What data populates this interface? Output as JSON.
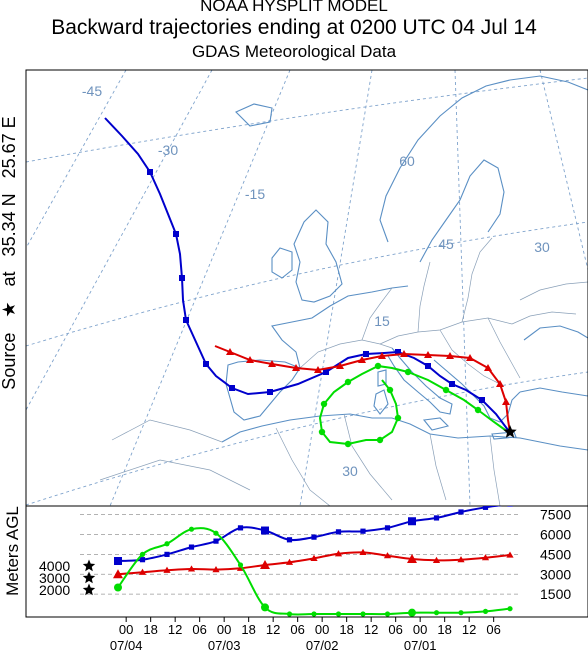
{
  "header": {
    "model": "NOAA HYSPLIT MODEL",
    "title": "Backward trajectories ending at 0200 UTC 04 Jul 14",
    "subtitle": "GDAS Meteorological Data"
  },
  "source_label": {
    "prefix": "Source",
    "star_glyph": "★",
    "at": "at",
    "lat": "35.34 N",
    "lon": "25.67 E"
  },
  "map": {
    "graticule_labels": [
      {
        "text": "-45"
      },
      {
        "text": "-30"
      },
      {
        "text": "-15"
      },
      {
        "text": "60"
      },
      {
        "text": "45"
      },
      {
        "text": "15"
      },
      {
        "text": "30"
      },
      {
        "text": "30"
      }
    ],
    "colors": {
      "graticule": "#7fa3cc",
      "coast": "#5a8fc4",
      "border": "#8aa0b8",
      "label": "#6f93bd"
    }
  },
  "chart_data": {
    "type": "line",
    "title": "Backward trajectories ending at 0200 UTC 04 Jul 14",
    "source": {
      "lat": 35.34,
      "lon": 25.67
    },
    "ylabel": "Meters AGL",
    "y_ticks_right": [
      "7500",
      "6000",
      "4500",
      "3000",
      "1500"
    ],
    "y_ticks_right_values": [
      7500,
      6000,
      4500,
      3000,
      1500
    ],
    "start_heights": [
      "4000",
      "3000",
      "2000"
    ],
    "ylim": [
      0,
      8000
    ],
    "x_ticks": [
      "00",
      "18",
      "12",
      "06",
      "00",
      "18",
      "12",
      "06",
      "00",
      "18",
      "12",
      "06",
      "00",
      "18",
      "12",
      "06"
    ],
    "x_hours_back": [
      2,
      8,
      14,
      20,
      26,
      32,
      38,
      44,
      50,
      56,
      62,
      68,
      74,
      80,
      86,
      92
    ],
    "x_dates": [
      "07/04",
      "07/03",
      "07/02",
      "07/01"
    ],
    "xlim_hours_back": [
      -4,
      96
    ],
    "series": [
      {
        "color": "#0000cc",
        "marker": "square",
        "start_height": 4000,
        "hours_back": [
          0,
          6,
          12,
          18,
          24,
          30,
          36,
          42,
          48,
          54,
          60,
          66,
          72,
          78,
          84,
          90,
          96
        ],
        "height": [
          4000,
          4100,
          4500,
          5050,
          5500,
          6500,
          6300,
          5600,
          5800,
          6200,
          6250,
          6500,
          7000,
          7250,
          7700,
          8050,
          8300
        ]
      },
      {
        "color": "#dd0000",
        "marker": "triangle",
        "start_height": 3000,
        "hours_back": [
          0,
          6,
          12,
          18,
          24,
          30,
          36,
          42,
          48,
          54,
          60,
          66,
          72,
          78,
          84,
          90,
          96
        ],
        "height": [
          3000,
          3150,
          3300,
          3400,
          3350,
          3450,
          3700,
          3900,
          4200,
          4550,
          4650,
          4400,
          4150,
          4050,
          4100,
          4250,
          4450
        ]
      },
      {
        "color": "#00dd00",
        "marker": "circle",
        "start_height": 2000,
        "hours_back": [
          0,
          6,
          12,
          18,
          24,
          30,
          36,
          42,
          48,
          54,
          60,
          66,
          72,
          78,
          84,
          90,
          96
        ],
        "height": [
          2000,
          4500,
          5300,
          6400,
          6100,
          3700,
          500,
          0,
          0,
          0,
          0,
          0,
          100,
          100,
          100,
          200,
          400
        ]
      }
    ]
  }
}
